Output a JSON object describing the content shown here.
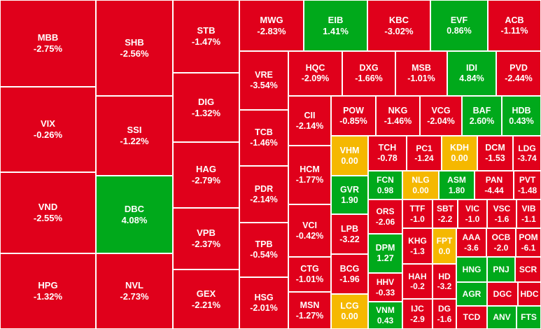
{
  "chart_data": {
    "type": "heatmap",
    "title": "",
    "colors": {
      "down": "#e0001b",
      "up": "#00a91b",
      "flat": "#f5b800"
    },
    "tiles": [
      {
        "ticker": "MBB",
        "change": "-2.75%",
        "value": -2.75
      },
      {
        "ticker": "VIX",
        "change": "-0.26%",
        "value": -0.26
      },
      {
        "ticker": "VND",
        "change": "-2.55%",
        "value": -2.55
      },
      {
        "ticker": "HPG",
        "change": "-1.32%",
        "value": -1.32
      },
      {
        "ticker": "SHB",
        "change": "-2.56%",
        "value": -2.56
      },
      {
        "ticker": "SSI",
        "change": "-1.22%",
        "value": -1.22
      },
      {
        "ticker": "DBC",
        "change": "4.08%",
        "value": 4.08
      },
      {
        "ticker": "NVL",
        "change": "-2.73%",
        "value": -2.73
      },
      {
        "ticker": "STB",
        "change": "-1.47%",
        "value": -1.47
      },
      {
        "ticker": "DIG",
        "change": "-1.32%",
        "value": -1.32
      },
      {
        "ticker": "HAG",
        "change": "-2.79%",
        "value": -2.79
      },
      {
        "ticker": "VPB",
        "change": "-2.37%",
        "value": -2.37
      },
      {
        "ticker": "GEX",
        "change": "-2.21%",
        "value": -2.21
      },
      {
        "ticker": "MWG",
        "change": "-2.83%",
        "value": -2.83
      },
      {
        "ticker": "EIB",
        "change": "1.41%",
        "value": 1.41
      },
      {
        "ticker": "KBC",
        "change": "-3.02%",
        "value": -3.02
      },
      {
        "ticker": "EVF",
        "change": "0.86%",
        "value": 0.86
      },
      {
        "ticker": "ACB",
        "change": "-1.11%",
        "value": -1.11
      },
      {
        "ticker": "VRE",
        "change": "-3.54%",
        "value": -3.54
      },
      {
        "ticker": "TCB",
        "change": "-1.46%",
        "value": -1.46
      },
      {
        "ticker": "PDR",
        "change": "-2.14%",
        "value": -2.14
      },
      {
        "ticker": "TPB",
        "change": "-0.54%",
        "value": -0.54
      },
      {
        "ticker": "HSG",
        "change": "-2.01%",
        "value": -2.01
      },
      {
        "ticker": "HQC",
        "change": "-2.09%",
        "value": -2.09
      },
      {
        "ticker": "DXG",
        "change": "-1.66%",
        "value": -1.66
      },
      {
        "ticker": "MSB",
        "change": "-1.01%",
        "value": -1.01
      },
      {
        "ticker": "IDI",
        "change": "4.84%",
        "value": 4.84
      },
      {
        "ticker": "PVD",
        "change": "-2.44%",
        "value": -2.44
      },
      {
        "ticker": "CII",
        "change": "-2.14%",
        "value": -2.14
      },
      {
        "ticker": "POW",
        "change": "-0.85%",
        "value": -0.85
      },
      {
        "ticker": "NKG",
        "change": "-1.46%",
        "value": -1.46
      },
      {
        "ticker": "VCG",
        "change": "-2.04%",
        "value": -2.04
      },
      {
        "ticker": "BAF",
        "change": "2.60%",
        "value": 2.6
      },
      {
        "ticker": "HDB",
        "change": "0.43%",
        "value": 0.43
      },
      {
        "ticker": "HCM",
        "change": "-1.77%",
        "value": -1.77
      },
      {
        "ticker": "VCI",
        "change": "-0.42%",
        "value": -0.42
      },
      {
        "ticker": "CTG",
        "change": "-1.01%",
        "value": -1.01
      },
      {
        "ticker": "MSN",
        "change": "-1.27%",
        "value": -1.27
      },
      {
        "ticker": "VHM",
        "change": "0.00",
        "value": 0.0
      },
      {
        "ticker": "GVR",
        "change": "1.90",
        "value": 1.9
      },
      {
        "ticker": "LPB",
        "change": "-3.22",
        "value": -3.22
      },
      {
        "ticker": "BCG",
        "change": "-1.96",
        "value": -1.96
      },
      {
        "ticker": "LCG",
        "change": "0.00",
        "value": 0.0
      },
      {
        "ticker": "TCH",
        "change": "-0.78",
        "value": -0.78
      },
      {
        "ticker": "PC1",
        "change": "-1.24",
        "value": -1.24
      },
      {
        "ticker": "KDH",
        "change": "0.00",
        "value": 0.0
      },
      {
        "ticker": "DCM",
        "change": "-1.53",
        "value": -1.53
      },
      {
        "ticker": "LDG",
        "change": "-3.74",
        "value": -3.74
      },
      {
        "ticker": "FCN",
        "change": "0.98",
        "value": 0.98
      },
      {
        "ticker": "NLG",
        "change": "0.00",
        "value": 0.0
      },
      {
        "ticker": "ASM",
        "change": "1.80",
        "value": 1.8
      },
      {
        "ticker": "PAN",
        "change": "-4.44",
        "value": -4.44
      },
      {
        "ticker": "PVT",
        "change": "-1.48",
        "value": -1.48
      },
      {
        "ticker": "ORS",
        "change": "-2.06",
        "value": -2.06
      },
      {
        "ticker": "TTF",
        "change": "-1.0",
        "value": -1.0
      },
      {
        "ticker": "SBT",
        "change": "-2.2",
        "value": -2.2
      },
      {
        "ticker": "VIC",
        "change": "-1.0",
        "value": -1.0
      },
      {
        "ticker": "VSC",
        "change": "-1.6",
        "value": -1.6
      },
      {
        "ticker": "VIB",
        "change": "-1.1",
        "value": -1.1
      },
      {
        "ticker": "DPM",
        "change": "1.27",
        "value": 1.27
      },
      {
        "ticker": "KHG",
        "change": "-1.3",
        "value": -1.3
      },
      {
        "ticker": "FPT",
        "change": "0.0",
        "value": 0.0
      },
      {
        "ticker": "AAA",
        "change": "-3.6",
        "value": -3.6
      },
      {
        "ticker": "OCB",
        "change": "-2.0",
        "value": -2.0
      },
      {
        "ticker": "POM",
        "change": "-6.1",
        "value": -6.1
      },
      {
        "ticker": "HHV",
        "change": "-0.33",
        "value": -0.33
      },
      {
        "ticker": "HAH",
        "change": "-0.2",
        "value": -0.2
      },
      {
        "ticker": "HD",
        "change": "-3.2",
        "value": -3.2
      },
      {
        "ticker": "HNG",
        "change": "",
        "value": null
      },
      {
        "ticker": "PNJ",
        "change": "",
        "value": null
      },
      {
        "ticker": "SCR",
        "change": "",
        "value": null
      },
      {
        "ticker": "VNM",
        "change": "0.43",
        "value": 0.43
      },
      {
        "ticker": "IJC",
        "change": "-2.9",
        "value": -2.9
      },
      {
        "ticker": "DG",
        "change": "-1.6",
        "value": -1.6
      },
      {
        "ticker": "AGR",
        "change": "",
        "value": null
      },
      {
        "ticker": "DGC",
        "change": "",
        "value": null
      },
      {
        "ticker": "HDC",
        "change": "",
        "value": null
      },
      {
        "ticker": "TCD",
        "change": "",
        "value": null
      },
      {
        "ticker": "ANV",
        "change": "",
        "value": null
      },
      {
        "ticker": "FTS",
        "change": "",
        "value": null
      }
    ]
  }
}
